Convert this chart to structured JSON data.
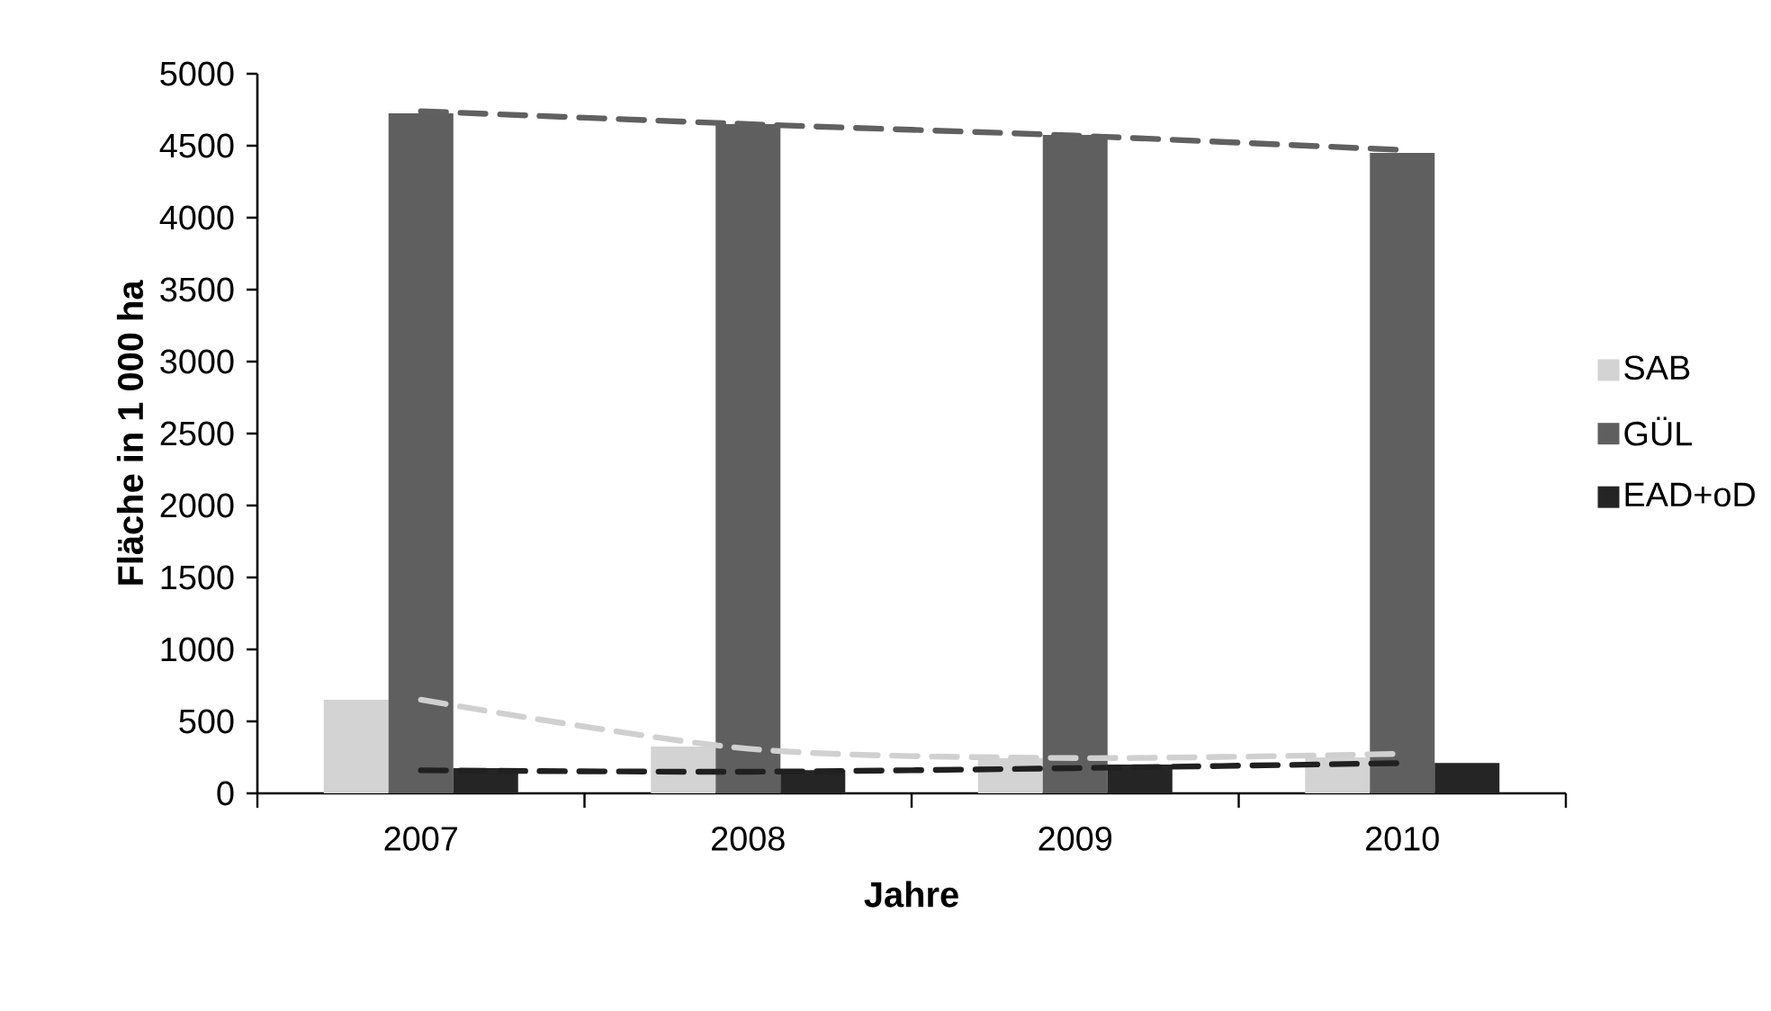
{
  "chart_data": {
    "type": "bar",
    "xlabel": "Jahre",
    "ylabel": "Fläche in 1 000 ha",
    "categories": [
      "2007",
      "2008",
      "2009",
      "2010"
    ],
    "series": [
      {
        "name": "SAB",
        "color": "#d3d3d3",
        "values": [
          650,
          325,
          245,
          250
        ]
      },
      {
        "name": "GÜL",
        "color": "#5f5f5f",
        "values": [
          4725,
          4650,
          4575,
          4450
        ]
      },
      {
        "name": "EAD+oD",
        "color": "#252525",
        "values": [
          175,
          160,
          200,
          210
        ]
      },
      {
        "type": "line",
        "color": "#d0d0d0",
        "line_style": "dashed",
        "values": [
          650,
          310,
          245,
          275
        ]
      },
      {
        "type": "line",
        "color": "#606060",
        "line_style": "dashed",
        "values": [
          4740,
          4650,
          4570,
          4470
        ]
      },
      {
        "type": "line",
        "color": "#202020",
        "line_style": "dashed",
        "values": [
          160,
          150,
          175,
          210
        ]
      }
    ],
    "ylim": [
      0,
      5000
    ],
    "yticks": [
      0,
      500,
      1000,
      1500,
      2000,
      2500,
      3000,
      3500,
      4000,
      4500,
      5000
    ],
    "grid": false,
    "legend": "right",
    "marker": "none"
  }
}
